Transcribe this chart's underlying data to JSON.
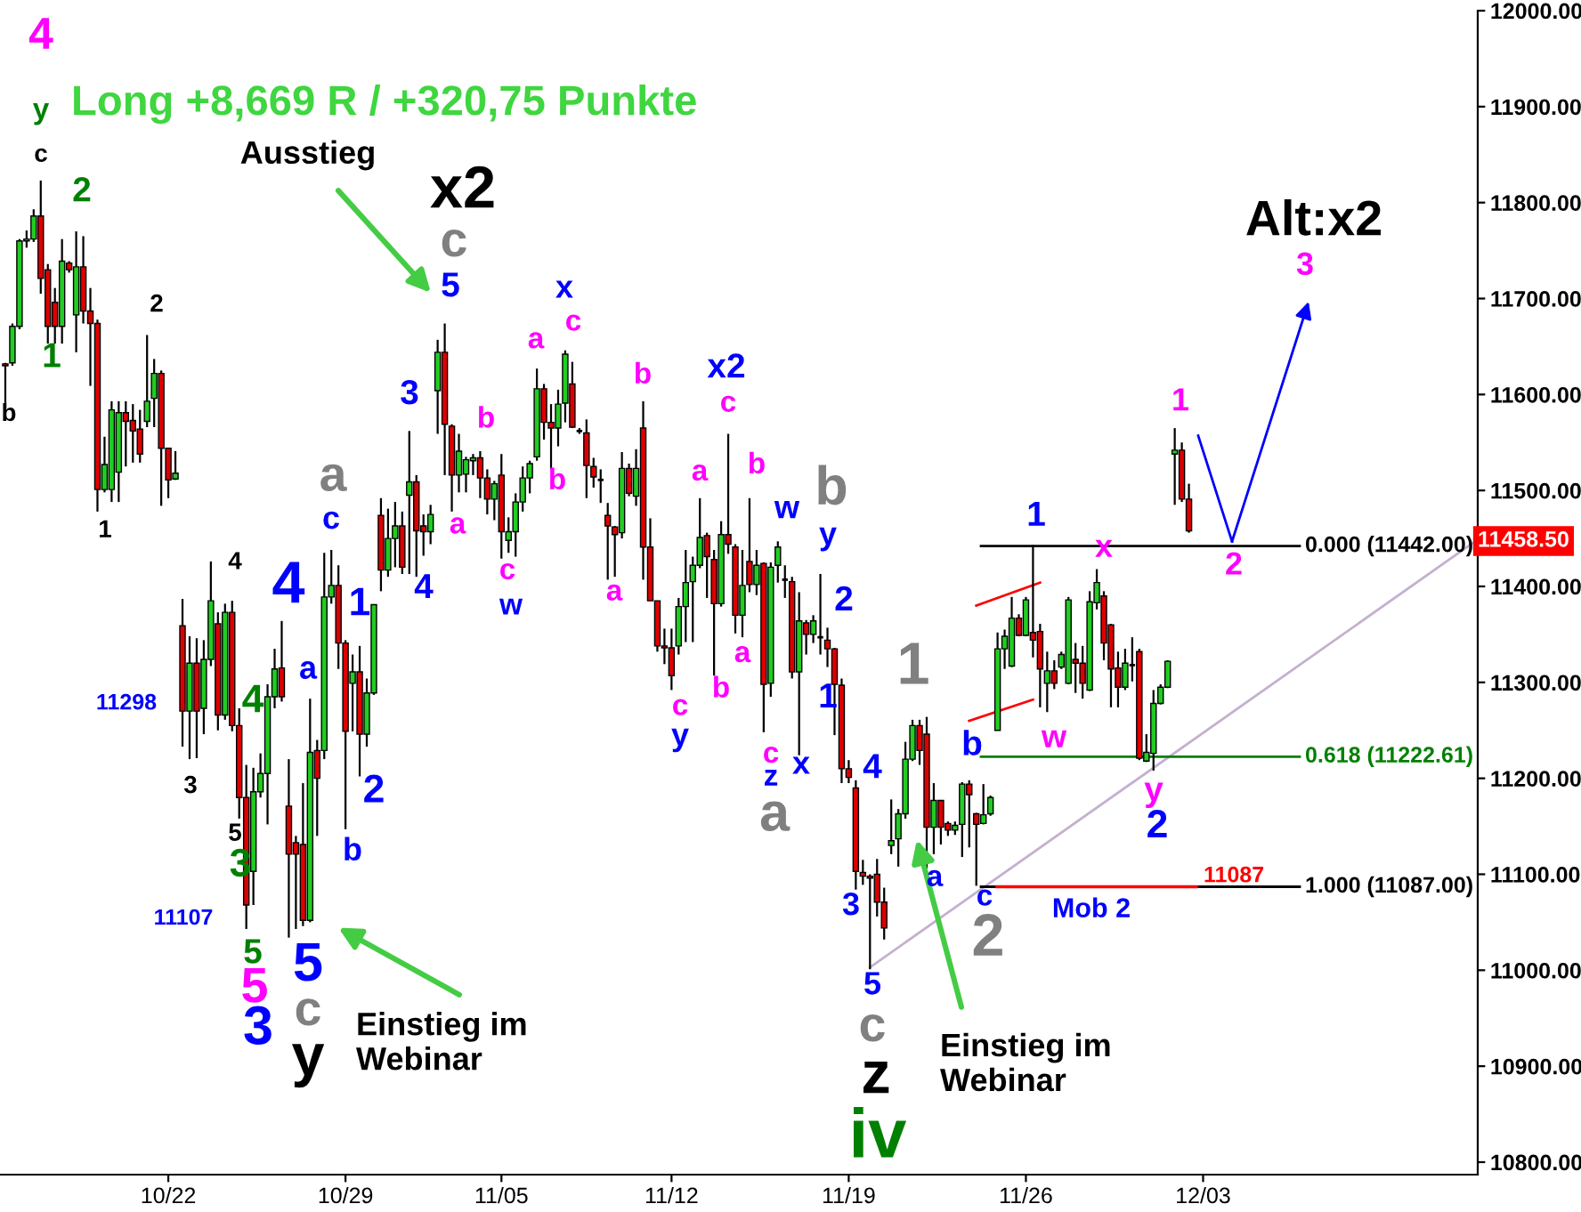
{
  "chart_data": {
    "type": "candlestick",
    "title": "Long +8,669 R / +320,75 Punkte",
    "categories": [
      null,
      null,
      null,
      null,
      null,
      null,
      null,
      null,
      null,
      null,
      null,
      null,
      null,
      null,
      null,
      null,
      null,
      null,
      null,
      null,
      null,
      null,
      null,
      "10/22",
      null,
      null,
      null,
      null,
      null,
      null,
      null,
      null,
      null,
      null,
      null,
      null,
      null,
      null,
      null,
      null,
      null,
      null,
      null,
      null,
      null,
      null,
      null,
      null,
      "10/29",
      null,
      null,
      null,
      null,
      null,
      null,
      null,
      null,
      null,
      null,
      null,
      null,
      null,
      null,
      null,
      null,
      null,
      null,
      null,
      null,
      null,
      "11/05",
      null,
      null,
      null,
      null,
      null,
      null,
      null,
      null,
      null,
      null,
      null,
      null,
      null,
      null,
      null,
      null,
      null,
      null,
      null,
      null,
      null,
      null,
      null,
      "11/12",
      null,
      null,
      null,
      null,
      null,
      null,
      null,
      null,
      null,
      null,
      null,
      null,
      null,
      null,
      null,
      null,
      null,
      null,
      null,
      null,
      null,
      null,
      null,
      null,
      "11/19",
      null,
      null,
      null,
      null,
      null,
      null,
      null,
      null,
      null,
      null,
      null,
      null,
      null,
      null,
      null,
      null,
      null,
      null,
      null,
      null,
      null,
      null,
      null,
      null,
      "11/26",
      null,
      null,
      null,
      null,
      null,
      null,
      null,
      null,
      null,
      null,
      null,
      null,
      null,
      null,
      null,
      null,
      null,
      null,
      null,
      null,
      null,
      null,
      null,
      null,
      "12/03",
      null,
      null,
      null,
      null,
      null,
      null,
      null,
      null,
      null,
      null,
      null,
      null,
      null,
      null,
      null,
      null,
      null,
      null,
      null,
      null,
      null,
      null,
      null,
      null,
      null,
      null,
      null,
      null,
      null,
      null,
      null,
      null,
      null,
      null,
      null,
      null,
      null,
      null
    ],
    "ylim": [
      10787,
      12000
    ],
    "yticks": [
      {
        "value": 10800,
        "label": "10800.00"
      },
      {
        "value": 10900,
        "label": "10900.00"
      },
      {
        "value": 11000,
        "label": "11000.00"
      },
      {
        "value": 11100,
        "label": "11100.00"
      },
      {
        "value": 11200,
        "label": "11200.00"
      },
      {
        "value": 11300,
        "label": "11300.00"
      },
      {
        "value": 11400,
        "label": "11400.00"
      },
      {
        "value": 11500,
        "label": "11500.00"
      },
      {
        "value": 11600,
        "label": "11600.00"
      },
      {
        "value": 11700,
        "label": "11700.00"
      },
      {
        "value": 11800,
        "label": "11800.00"
      },
      {
        "value": 11900,
        "label": "11900.00"
      },
      {
        "value": 12000,
        "label": "12000.00"
      }
    ],
    "series": [
      {
        "colors": [
          "#dd0000",
          "#22cc22",
          "#22cc22",
          "#22cc22",
          "#22cc22",
          "#dd0000",
          "#dd0000",
          "#dd0000",
          "#22cc22",
          "#dd0000",
          "#22cc22",
          "#dd0000",
          "#dd0000",
          "#dd0000",
          "#22cc22",
          "#22cc22",
          "#22cc22",
          "#dd0000",
          "#dd0000",
          "#dd0000",
          "#22cc22",
          "#22cc22",
          "#dd0000",
          "#dd0000",
          "#22cc22",
          "#dd0000",
          "#22cc22",
          "#dd0000",
          "#22cc22",
          "#22cc22",
          "#dd0000",
          "#22cc22",
          "#dd0000",
          "#dd0000",
          "#dd0000",
          "#22cc22",
          "#22cc22",
          "#22cc22",
          "#22cc22",
          "#dd0000",
          "#dd0000",
          "#dd0000",
          "#dd0000",
          "#22cc22",
          "#dd0000",
          "#22cc22",
          "#22cc22",
          "#dd0000",
          "#dd0000",
          "#22cc22",
          "#dd0000",
          "#22cc22",
          "#22cc22",
          "#dd0000",
          "#22cc22",
          "#22cc22",
          "#dd0000",
          "#22cc22",
          "#dd0000",
          "#dd0000",
          "#22cc22",
          "#22cc22",
          "#dd0000",
          "#dd0000",
          "#22cc22",
          "#22cc22",
          "#22cc22",
          "#dd0000",
          "#dd0000",
          "#22cc22",
          "#dd0000",
          "#22cc22",
          "#22cc22",
          "#22cc22",
          "#22cc22",
          "#22cc22",
          "#dd0000",
          "#dd0000",
          "#22cc22",
          "#22cc22",
          "#dd0000",
          "#000000",
          "#dd0000",
          "#dd0000",
          "#000000",
          "#dd0000",
          "#dd0000",
          "#22cc22",
          "#dd0000",
          "#22cc22",
          "#dd0000",
          "#dd0000",
          "#dd0000",
          "#dd0000",
          "#dd0000",
          "#22cc22",
          "#22cc22",
          "#22cc22",
          "#22cc22",
          "#dd0000",
          "#dd0000",
          "#22cc22",
          "#dd0000",
          "#dd0000",
          "#22cc22",
          "#dd0000",
          "#22cc22",
          "#dd0000",
          "#22cc22",
          "#22cc22",
          "#000000",
          "#dd0000",
          "#22cc22",
          "#dd0000",
          "#22cc22",
          "#000000",
          "#dd0000",
          "#dd0000",
          "#dd0000",
          "#dd0000",
          "#dd0000",
          "#dd0000",
          "#dd0000",
          "#dd0000",
          "#dd0000",
          "#22cc22",
          "#22cc22",
          "#22cc22",
          "#22cc22",
          "#dd0000",
          "#dd0000",
          "#22cc22",
          "#dd0000",
          "#dd0000",
          "#22cc22",
          "#22cc22",
          "#dd0000",
          "#dd0000",
          "#22cc22",
          "#22cc22",
          "#22cc22",
          "#22cc22",
          "#22cc22",
          "#dd0000",
          "#22cc22",
          "#dd0000",
          "#dd0000",
          "#22cc22",
          "#dd0000",
          "#22cc22",
          "#22cc22",
          "#dd0000",
          "#dd0000",
          "#22cc22",
          "#22cc22",
          "#dd0000",
          "#dd0000",
          "#dd0000",
          "#22cc22",
          "#000000",
          "#dd0000",
          "#22cc22",
          "#22cc22",
          "#22cc22",
          "#22cc22",
          "#22cc22",
          "#dd0000",
          "#dd0000",
          null,
          null,
          null,
          null,
          null,
          null,
          null,
          null,
          null,
          null,
          null,
          null,
          null,
          null,
          null,
          null,
          null,
          null,
          null,
          null,
          null,
          null,
          null,
          null,
          null,
          null,
          null,
          null,
          null,
          null,
          null,
          null,
          null,
          null,
          null,
          null,
          null,
          null,
          null,
          null
        ],
        "ohlc": [
          [
            11632,
            11633,
            11590,
            11630
          ],
          [
            11633,
            11674,
            11630,
            11671
          ],
          [
            11671,
            11762,
            11668,
            11760
          ],
          [
            11760,
            11771,
            11753,
            11762
          ],
          [
            11762,
            11793,
            11759,
            11786
          ],
          [
            11786,
            11823,
            11705,
            11721
          ],
          [
            11730,
            11736,
            11653,
            11671
          ],
          [
            11696,
            11711,
            11653,
            11671
          ],
          [
            11671,
            11762,
            11653,
            11739
          ],
          [
            11737,
            11739,
            11727,
            11730
          ],
          [
            11683,
            11770,
            11644,
            11733
          ],
          [
            11733,
            11765,
            11674,
            11687
          ],
          [
            11687,
            11711,
            11609,
            11674
          ],
          [
            11674,
            11678,
            11478,
            11501
          ],
          [
            11501,
            11556,
            11498,
            11527
          ],
          [
            11501,
            11593,
            11488,
            11584
          ],
          [
            11519,
            11593,
            11488,
            11581
          ],
          [
            11581,
            11593,
            11525,
            11572
          ],
          [
            11573,
            11590,
            11529,
            11562
          ],
          [
            11564,
            11584,
            11529,
            11538
          ],
          [
            11572,
            11662,
            11566,
            11593
          ],
          [
            11596,
            11637,
            11566,
            11622
          ],
          [
            11622,
            11625,
            11484,
            11544
          ],
          [
            11544,
            11544,
            11492,
            11511
          ],
          [
            11512,
            11541,
            11511,
            11518
          ],
          [
            11359,
            11387,
            11233,
            11270
          ],
          [
            11270,
            11348,
            11220,
            11320
          ],
          [
            11320,
            11346,
            11221,
            11270
          ],
          [
            11273,
            11344,
            11246,
            11324
          ],
          [
            11324,
            11426,
            11317,
            11385
          ],
          [
            11361,
            11373,
            11250,
            11266
          ],
          [
            11266,
            11382,
            11261,
            11373
          ],
          [
            11373,
            11385,
            11249,
            11255
          ],
          [
            11255,
            11273,
            11158,
            11180
          ],
          [
            11180,
            11214,
            11043,
            11068
          ],
          [
            11103,
            11211,
            11068,
            11186
          ],
          [
            11186,
            11226,
            11180,
            11205
          ],
          [
            11205,
            11298,
            11152,
            11285
          ],
          [
            11285,
            11335,
            11273,
            11314
          ],
          [
            11315,
            11364,
            11280,
            11285
          ],
          [
            11171,
            11220,
            11034,
            11121
          ],
          [
            11133,
            11140,
            11043,
            11121
          ],
          [
            11131,
            11195,
            11046,
            11052
          ],
          [
            11052,
            11283,
            11050,
            11227
          ],
          [
            11229,
            11240,
            11140,
            11200
          ],
          [
            11229,
            11435,
            11220,
            11389
          ],
          [
            11389,
            11438,
            11382,
            11401
          ],
          [
            11401,
            11422,
            11314,
            11341
          ],
          [
            11341,
            11344,
            11147,
            11249
          ],
          [
            11299,
            11329,
            11249,
            11311
          ],
          [
            11311,
            11338,
            11202,
            11246
          ],
          [
            11246,
            11304,
            11233,
            11289
          ],
          [
            11289,
            11381,
            11287,
            11381
          ],
          [
            11474,
            11492,
            11395,
            11417
          ],
          [
            11417,
            11481,
            11410,
            11450
          ],
          [
            11450,
            11488,
            11420,
            11463
          ],
          [
            11463,
            11478,
            11413,
            11420
          ],
          [
            11495,
            11562,
            11413,
            11509
          ],
          [
            11509,
            11516,
            11410,
            11458
          ],
          [
            11463,
            11475,
            11432,
            11457
          ],
          [
            11457,
            11485,
            11444,
            11475
          ],
          [
            11604,
            11657,
            11559,
            11644
          ],
          [
            11644,
            11674,
            11516,
            11569
          ],
          [
            11567,
            11569,
            11478,
            11516
          ],
          [
            11516,
            11559,
            11498,
            11541
          ],
          [
            11517,
            11535,
            11498,
            11532
          ],
          [
            11531,
            11538,
            11516,
            11534
          ],
          [
            11534,
            11541,
            11492,
            11513
          ],
          [
            11513,
            11522,
            11475,
            11491
          ],
          [
            11491,
            11510,
            11469,
            11507
          ],
          [
            11516,
            11538,
            11429,
            11457
          ],
          [
            11448,
            11472,
            11435,
            11457
          ],
          [
            11457,
            11497,
            11431,
            11488
          ],
          [
            11488,
            11525,
            11478,
            11513
          ],
          [
            11513,
            11531,
            11497,
            11528
          ],
          [
            11535,
            11627,
            11531,
            11606
          ],
          [
            11606,
            11611,
            11553,
            11571
          ],
          [
            11571,
            11590,
            11522,
            11565
          ],
          [
            11565,
            11605,
            11546,
            11590
          ],
          [
            11591,
            11646,
            11571,
            11642
          ],
          [
            11611,
            11634,
            11565,
            11566
          ],
          [
            11562,
            11565,
            11559,
            11562
          ],
          [
            11560,
            11574,
            11492,
            11526
          ],
          [
            11525,
            11534,
            11503,
            11514
          ],
          [
            11511,
            11522,
            11487,
            11511
          ],
          [
            11474,
            11487,
            11407,
            11463
          ],
          [
            11462,
            11463,
            11410,
            11454
          ],
          [
            11456,
            11540,
            11450,
            11523
          ],
          [
            11523,
            11528,
            11494,
            11497
          ],
          [
            11494,
            11543,
            11484,
            11523
          ],
          [
            11565,
            11593,
            11407,
            11441
          ],
          [
            11441,
            11471,
            11385,
            11385
          ],
          [
            11385,
            11385,
            11332,
            11338
          ],
          [
            11338,
            11356,
            11319,
            11336
          ],
          [
            11336,
            11356,
            11292,
            11307
          ],
          [
            11338,
            11388,
            11329,
            11379
          ],
          [
            11379,
            11438,
            11342,
            11404
          ],
          [
            11405,
            11431,
            11342,
            11422
          ],
          [
            11422,
            11492,
            11419,
            11451
          ],
          [
            11453,
            11456,
            11388,
            11431
          ],
          [
            11428,
            11438,
            11307,
            11382
          ],
          [
            11382,
            11468,
            11379,
            11454
          ],
          [
            11454,
            11559,
            11434,
            11444
          ],
          [
            11441,
            11444,
            11351,
            11370
          ],
          [
            11370,
            11438,
            11347,
            11401
          ],
          [
            11426,
            11492,
            11394,
            11402
          ],
          [
            11402,
            11438,
            11391,
            11422
          ],
          [
            11424,
            11425,
            11248,
            11298
          ],
          [
            11299,
            11425,
            11285,
            11420
          ],
          [
            11422,
            11447,
            11404,
            11441
          ],
          [
            11407,
            11422,
            11388,
            11407
          ],
          [
            11405,
            11410,
            11304,
            11311
          ],
          [
            11311,
            11394,
            11224,
            11364
          ],
          [
            11362,
            11365,
            11329,
            11350
          ],
          [
            11350,
            11370,
            11341,
            11364
          ],
          [
            11347,
            11413,
            11329,
            11347
          ],
          [
            11344,
            11357,
            11316,
            11335
          ],
          [
            11335,
            11336,
            11245,
            11298
          ],
          [
            11297,
            11304,
            11195,
            11210
          ],
          [
            11210,
            11219,
            11195,
            11201
          ],
          [
            11190,
            11198,
            11084,
            11103
          ],
          [
            11102,
            11115,
            11089,
            11098
          ],
          [
            11098,
            11100,
            11001,
            11096
          ],
          [
            11100,
            11116,
            11056,
            11071
          ],
          [
            11071,
            11086,
            11032,
            11044
          ],
          [
            11130,
            11178,
            11121,
            11135
          ],
          [
            11137,
            11168,
            11108,
            11163
          ],
          [
            11163,
            11238,
            11158,
            11220
          ],
          [
            11220,
            11261,
            11218,
            11255
          ],
          [
            11255,
            11261,
            11214,
            11229
          ],
          [
            11246,
            11264,
            11106,
            11149
          ],
          [
            11149,
            11195,
            11121,
            11177
          ],
          [
            11177,
            11177,
            11131,
            11149
          ],
          [
            11153,
            11155,
            11140,
            11146
          ],
          [
            11146,
            11155,
            11141,
            11151
          ],
          [
            11152,
            11196,
            11118,
            11194
          ],
          [
            11194,
            11198,
            11128,
            11183
          ],
          [
            11163,
            11164,
            11088,
            11152
          ],
          [
            11153,
            11194,
            11152,
            11162
          ],
          [
            11163,
            11182,
            11161,
            11180
          ],
          [
            11250,
            11352,
            11250,
            11335
          ],
          [
            11335,
            11355,
            11314,
            11348
          ],
          [
            11317,
            11389,
            11316,
            11367
          ],
          [
            11367,
            11371,
            11348,
            11349
          ],
          [
            11349,
            11389,
            11348,
            11386
          ],
          [
            11352,
            11443,
            11326,
            11344
          ],
          [
            11353,
            11361,
            11274,
            11314
          ],
          [
            11299,
            11332,
            11269,
            11312
          ],
          [
            11312,
            11323,
            11293,
            11299
          ],
          [
            11316,
            11332,
            11314,
            11329
          ],
          [
            11299,
            11389,
            11298,
            11386
          ],
          [
            11324,
            11341,
            11289,
            11320
          ],
          [
            11320,
            11338,
            11283,
            11299
          ],
          [
            11292,
            11395,
            11291,
            11384
          ],
          [
            11383,
            11418,
            11376,
            11404
          ],
          [
            11390,
            11395,
            11323,
            11341
          ],
          [
            11360,
            11361,
            11274,
            11314
          ],
          [
            11315,
            11332,
            11274,
            11295
          ],
          [
            11295,
            11335,
            11292,
            11320
          ],
          [
            11318,
            11347,
            11301,
            11318
          ],
          [
            11332,
            11335,
            11219,
            11221
          ],
          [
            11218,
            11246,
            11217,
            11227
          ],
          [
            11226,
            11292,
            11208,
            11278
          ],
          [
            11278,
            11298,
            11277,
            11295
          ],
          [
            11295,
            11323,
            11294,
            11322
          ],
          [
            11538,
            11565,
            11485,
            11542
          ],
          [
            11542,
            11550,
            11488,
            11491
          ],
          [
            11491,
            11507,
            11456,
            11458
          ],
          null,
          null,
          null,
          null,
          null,
          null,
          null,
          null,
          null,
          null,
          null,
          null,
          null,
          null,
          null,
          null,
          null,
          null,
          null,
          null,
          null,
          null,
          null,
          null,
          null,
          null,
          null,
          null,
          null,
          null,
          null,
          null,
          null,
          null,
          null,
          null,
          null,
          null,
          null,
          null
        ]
      },
      {
        "type": "line",
        "color": "#c4b0d0",
        "values": [
          null,
          null,
          null,
          null,
          null,
          null,
          null,
          null,
          null,
          null,
          null,
          null,
          null,
          null,
          null,
          null,
          null,
          null,
          null,
          null,
          null,
          null,
          null,
          null,
          null,
          null,
          null,
          null,
          null,
          null,
          null,
          null,
          null,
          null,
          null,
          null,
          null,
          null,
          null,
          null,
          null,
          null,
          null,
          null,
          null,
          null,
          null,
          null,
          null,
          null,
          null,
          null,
          null,
          null,
          null,
          null,
          null,
          null,
          null,
          null,
          null,
          null,
          null,
          null,
          null,
          null,
          null,
          null,
          null,
          null,
          null,
          null,
          null,
          null,
          null,
          null,
          null,
          null,
          null,
          null,
          null,
          null,
          null,
          null,
          null,
          null,
          null,
          null,
          null,
          null,
          null,
          null,
          null,
          null,
          null,
          null,
          null,
          null,
          null,
          null,
          null,
          null,
          null,
          null,
          null,
          null,
          null,
          null,
          null,
          null,
          null,
          null,
          null,
          null,
          null,
          null,
          null,
          null,
          null,
          null,
          null,
          null,
          11003,
          null,
          null,
          null,
          null,
          null,
          null,
          null,
          null,
          null,
          null,
          null,
          null,
          null,
          null,
          null,
          null,
          null,
          null,
          null,
          null,
          null,
          null,
          null,
          null,
          null,
          null,
          null,
          null,
          null,
          null,
          null,
          null,
          null,
          null,
          null,
          null,
          null,
          null,
          null,
          null,
          null,
          null,
          null,
          null,
          null,
          null,
          null,
          null,
          null,
          null,
          null,
          null,
          null,
          null,
          null,
          null,
          null,
          null,
          null,
          null,
          null,
          null,
          null,
          null,
          null,
          null,
          null,
          null,
          null,
          null,
          null,
          null,
          null,
          null,
          null,
          null,
          null,
          null,
          null,
          null,
          null,
          null,
          null,
          null,
          11445
        ]
      },
      {
        "type": "line",
        "color": "#ff0000",
        "values": [
          null,
          null,
          null,
          null,
          null,
          null,
          null,
          null,
          null,
          null,
          null,
          null,
          null,
          null,
          null,
          null,
          null,
          null,
          null,
          null,
          null,
          null,
          null,
          null,
          null,
          null,
          null,
          null,
          null,
          null,
          null,
          null,
          null,
          null,
          null,
          null,
          null,
          null,
          null,
          null,
          null,
          null,
          null,
          null,
          null,
          null,
          null,
          null,
          null,
          null,
          null,
          null,
          null,
          null,
          null,
          null,
          null,
          null,
          null,
          null,
          null,
          null,
          null,
          null,
          null,
          null,
          null,
          null,
          null,
          null,
          null,
          null,
          null,
          null,
          null,
          null,
          null,
          null,
          null,
          null,
          null,
          null,
          null,
          null,
          null,
          null,
          null,
          null,
          null,
          null,
          null,
          null,
          null,
          null,
          null,
          null,
          null,
          null,
          null,
          null,
          null,
          null,
          null,
          null,
          null,
          null,
          null,
          null,
          null,
          null,
          null,
          null,
          null,
          null,
          null,
          null,
          null,
          null,
          null,
          null,
          null,
          null,
          null,
          null,
          null,
          null,
          null,
          null,
          null,
          null,
          null,
          null,
          null,
          null,
          null,
          null,
          null,
          11380,
          null,
          null,
          null,
          null,
          null,
          null,
          null,
          null,
          11404,
          null,
          null,
          null,
          null,
          null,
          null,
          null,
          null,
          null,
          null,
          null,
          null,
          null,
          null,
          null,
          null,
          null,
          null,
          null,
          null,
          null,
          null,
          null,
          null,
          null,
          null,
          null,
          null,
          null,
          null,
          null,
          null,
          null,
          null,
          null,
          null,
          null,
          null,
          null,
          null,
          null,
          null,
          null,
          null,
          null,
          null,
          null,
          null,
          null,
          null,
          null,
          null,
          null,
          null,
          null,
          null,
          null,
          null,
          null,
          null,
          null
        ]
      },
      {
        "type": "line",
        "color": "#ff0000",
        "values": [
          null,
          null,
          null,
          null,
          null,
          null,
          null,
          null,
          null,
          null,
          null,
          null,
          null,
          null,
          null,
          null,
          null,
          null,
          null,
          null,
          null,
          null,
          null,
          null,
          null,
          null,
          null,
          null,
          null,
          null,
          null,
          null,
          null,
          null,
          null,
          null,
          null,
          null,
          null,
          null,
          null,
          null,
          null,
          null,
          null,
          null,
          null,
          null,
          null,
          null,
          null,
          null,
          null,
          null,
          null,
          null,
          null,
          null,
          null,
          null,
          null,
          null,
          null,
          null,
          null,
          null,
          null,
          null,
          null,
          null,
          null,
          null,
          null,
          null,
          null,
          null,
          null,
          null,
          null,
          null,
          null,
          null,
          null,
          null,
          null,
          null,
          null,
          null,
          null,
          null,
          null,
          null,
          null,
          null,
          null,
          null,
          null,
          null,
          null,
          null,
          null,
          null,
          null,
          null,
          null,
          null,
          null,
          null,
          null,
          null,
          null,
          null,
          null,
          null,
          null,
          null,
          null,
          null,
          null,
          null,
          null,
          null,
          null,
          null,
          null,
          null,
          null,
          null,
          null,
          null,
          null,
          null,
          null,
          null,
          null,
          null,
          11260,
          null,
          null,
          null,
          null,
          null,
          null,
          null,
          null,
          11282,
          null,
          null,
          null,
          null,
          null,
          null,
          null,
          null,
          null,
          null,
          null,
          null,
          null,
          null,
          null,
          null,
          null,
          null,
          null,
          null,
          null,
          null,
          null,
          null,
          null,
          null,
          null,
          null,
          null,
          null,
          null,
          null,
          null,
          null,
          null,
          null,
          null,
          null,
          null,
          null,
          null,
          null,
          null,
          null,
          null,
          null,
          null,
          null,
          null,
          null,
          null,
          null,
          null,
          null,
          null,
          null,
          null,
          null,
          null,
          null,
          null,
          null
        ]
      }
    ],
    "ref_lines": [
      {
        "axis": "y",
        "value": 11442,
        "label": "0.000 (11442.00)",
        "color": "#000000"
      },
      {
        "axis": "y",
        "value": 11222.61,
        "label": "0.618 (11222.61)",
        "color": "#008000"
      },
      {
        "axis": "y",
        "value": 11087,
        "label": "1.000 (11087.00)",
        "color": "#000000"
      },
      {
        "axis": "y",
        "value": 11087,
        "label": "11087",
        "color": "#ff0000"
      }
    ],
    "annotations": [
      "11458.50",
      "Ausstieg",
      "Einstieg im\nWebinar",
      "Einstieg im\nWebinar",
      "Alt:x2",
      "4",
      "y",
      "c",
      "2",
      "1",
      "b",
      "2",
      "1",
      "4",
      "4",
      "c",
      "a",
      "a",
      "1",
      "11298",
      "4",
      "3",
      "2",
      "5",
      "3",
      "b",
      "11107",
      "5",
      "5",
      "3",
      "5",
      "c",
      "y",
      "3",
      "5",
      "c",
      "x2",
      "4",
      "a",
      "b",
      "c",
      "w",
      "a",
      "x",
      "c",
      "b",
      "a",
      "b",
      "c",
      "y",
      "b",
      "x2",
      "c",
      "a",
      "a",
      "b",
      "c",
      "z",
      "w",
      "x",
      "b",
      "y",
      "2",
      "1",
      "4",
      "a",
      "1",
      "3",
      "5",
      "c",
      "z",
      "iv",
      "b",
      "a",
      "c",
      "2",
      "1",
      "x",
      "w",
      "y",
      "2",
      {
        "text": "1",
        "y": 11556
      },
      "2",
      "3",
      "Mob 2"
    ]
  }
}
